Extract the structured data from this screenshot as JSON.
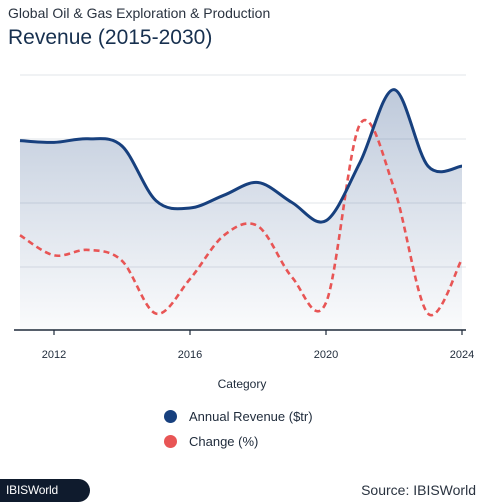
{
  "header": {
    "subtitle": "Global Oil & Gas Exploration & Production",
    "title": "Revenue (2015-2030)"
  },
  "footer": {
    "logo": "IBISWorld",
    "source": "Source: IBISWorld"
  },
  "colors": {
    "revenue": "#17407e",
    "change": "#e85555",
    "grid": "#e2e5ea"
  },
  "chart_data": {
    "type": "line",
    "xlabel": "Category",
    "ylabel": "",
    "x_ticks": [
      2012,
      2016,
      2020,
      2024
    ],
    "xlim": [
      2011,
      2024
    ],
    "grid": "horizontal",
    "series": [
      {
        "name": "Annual Revenue ($tr)",
        "style": "solid-area",
        "x": [
          2011,
          2012,
          2013,
          2014,
          2015,
          2016,
          2017,
          2018,
          2019,
          2020,
          2021,
          2022,
          2023,
          2024
        ],
        "values": [
          3.2,
          3.15,
          3.25,
          3.05,
          1.55,
          1.35,
          1.7,
          2.05,
          1.5,
          1.0,
          2.6,
          4.6,
          2.5,
          2.5
        ]
      },
      {
        "name": "Change (%)",
        "style": "dashed",
        "x": [
          2011,
          2012,
          2013,
          2014,
          2015,
          2016,
          2017,
          2018,
          2019,
          2020,
          2021,
          2022,
          2023,
          2024
        ],
        "values": [
          0.6,
          0.05,
          0.2,
          -0.1,
          -1.55,
          -0.6,
          0.6,
          0.85,
          -0.55,
          -1.25,
          3.65,
          1.9,
          -1.55,
          -0.05
        ]
      }
    ]
  }
}
